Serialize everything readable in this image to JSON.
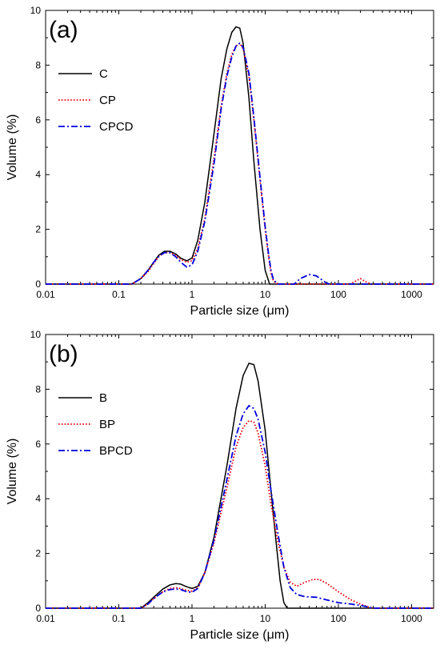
{
  "chart_data": [
    {
      "type": "line",
      "panel_label": "(a)",
      "xlabel": "Particle size (μm)",
      "ylabel": "Volume (%)",
      "x_scale": "log",
      "xlim": [
        0.01,
        2000
      ],
      "ylim": [
        0,
        10
      ],
      "x_ticks": [
        0.01,
        0.1,
        1,
        10,
        100,
        1000
      ],
      "x_tick_labels": [
        "0.01",
        "0.1",
        "1",
        "10",
        "100",
        "1000"
      ],
      "y_ticks": [
        0,
        2,
        4,
        6,
        8,
        10
      ],
      "y_tick_labels": [
        "0",
        "2",
        "4",
        "6",
        "8",
        "10"
      ],
      "legend_position": "top-left",
      "series": [
        {
          "name": "C",
          "color": "#000000",
          "style": "solid",
          "points": [
            [
              0.01,
              0
            ],
            [
              0.15,
              0
            ],
            [
              0.2,
              0.2
            ],
            [
              0.25,
              0.5
            ],
            [
              0.3,
              0.8
            ],
            [
              0.35,
              1.05
            ],
            [
              0.42,
              1.2
            ],
            [
              0.5,
              1.2
            ],
            [
              0.6,
              1.1
            ],
            [
              0.7,
              0.95
            ],
            [
              0.85,
              0.85
            ],
            [
              1.0,
              0.95
            ],
            [
              1.2,
              1.6
            ],
            [
              1.5,
              3.0
            ],
            [
              2.0,
              5.5
            ],
            [
              2.5,
              7.5
            ],
            [
              3.0,
              8.6
            ],
            [
              3.5,
              9.2
            ],
            [
              4.0,
              9.4
            ],
            [
              4.5,
              9.35
            ],
            [
              5.0,
              8.8
            ],
            [
              6.0,
              6.8
            ],
            [
              7.0,
              4.5
            ],
            [
              8.5,
              2.0
            ],
            [
              10,
              0.5
            ],
            [
              11.5,
              0
            ],
            [
              2000,
              0
            ]
          ]
        },
        {
          "name": "CP",
          "color": "#e8000b",
          "style": "dotted",
          "points": [
            [
              0.01,
              0
            ],
            [
              0.15,
              0
            ],
            [
              0.2,
              0.2
            ],
            [
              0.25,
              0.45
            ],
            [
              0.3,
              0.75
            ],
            [
              0.35,
              1.0
            ],
            [
              0.42,
              1.15
            ],
            [
              0.5,
              1.15
            ],
            [
              0.6,
              1.05
            ],
            [
              0.7,
              0.9
            ],
            [
              0.85,
              0.8
            ],
            [
              1.0,
              0.85
            ],
            [
              1.2,
              1.3
            ],
            [
              1.5,
              2.4
            ],
            [
              2.0,
              4.6
            ],
            [
              2.5,
              6.5
            ],
            [
              3.0,
              7.7
            ],
            [
              3.5,
              8.4
            ],
            [
              4.0,
              8.7
            ],
            [
              4.5,
              8.8
            ],
            [
              5.0,
              8.6
            ],
            [
              6.0,
              7.6
            ],
            [
              7.0,
              6.0
            ],
            [
              8.5,
              3.8
            ],
            [
              10,
              2.0
            ],
            [
              11,
              1.1
            ],
            [
              12,
              0.4
            ],
            [
              13,
              0.1
            ],
            [
              15,
              0
            ],
            [
              140,
              0
            ],
            [
              170,
              0.1
            ],
            [
              200,
              0.2
            ],
            [
              230,
              0.1
            ],
            [
              280,
              0
            ],
            [
              2000,
              0
            ]
          ]
        },
        {
          "name": "CPCD",
          "color": "#0000dd",
          "style": "dashdot",
          "points": [
            [
              0.01,
              0
            ],
            [
              0.15,
              0
            ],
            [
              0.2,
              0.2
            ],
            [
              0.25,
              0.5
            ],
            [
              0.3,
              0.8
            ],
            [
              0.35,
              1.0
            ],
            [
              0.42,
              1.15
            ],
            [
              0.5,
              1.15
            ],
            [
              0.6,
              1.0
            ],
            [
              0.7,
              0.8
            ],
            [
              0.85,
              0.62
            ],
            [
              1.0,
              0.7
            ],
            [
              1.2,
              1.2
            ],
            [
              1.5,
              2.3
            ],
            [
              2.0,
              4.4
            ],
            [
              2.5,
              6.4
            ],
            [
              3.0,
              7.6
            ],
            [
              3.5,
              8.3
            ],
            [
              4.0,
              8.7
            ],
            [
              4.5,
              8.8
            ],
            [
              5.0,
              8.65
            ],
            [
              6.0,
              7.7
            ],
            [
              7.0,
              6.1
            ],
            [
              8.5,
              3.9
            ],
            [
              10,
              2.1
            ],
            [
              11,
              1.2
            ],
            [
              12,
              0.5
            ],
            [
              13,
              0.15
            ],
            [
              15,
              0
            ],
            [
              25,
              0
            ],
            [
              30,
              0.2
            ],
            [
              40,
              0.35
            ],
            [
              50,
              0.3
            ],
            [
              60,
              0.15
            ],
            [
              70,
              0.02
            ],
            [
              80,
              0
            ],
            [
              2000,
              0
            ]
          ]
        }
      ]
    },
    {
      "type": "line",
      "panel_label": "(b)",
      "xlabel": "Particle size (μm)",
      "ylabel": "Volume (%)",
      "x_scale": "log",
      "xlim": [
        0.01,
        2000
      ],
      "ylim": [
        0,
        10
      ],
      "x_ticks": [
        0.01,
        0.1,
        1,
        10,
        100,
        1000
      ],
      "x_tick_labels": [
        "0.01",
        "0.1",
        "1",
        "10",
        "100",
        "1000"
      ],
      "y_ticks": [
        0,
        2,
        4,
        6,
        8,
        10
      ],
      "y_tick_labels": [
        "0",
        "2",
        "4",
        "6",
        "8",
        "10"
      ],
      "legend_position": "top-left",
      "series": [
        {
          "name": "B",
          "color": "#000000",
          "style": "solid",
          "points": [
            [
              0.01,
              0
            ],
            [
              0.2,
              0
            ],
            [
              0.25,
              0.2
            ],
            [
              0.3,
              0.4
            ],
            [
              0.4,
              0.7
            ],
            [
              0.5,
              0.85
            ],
            [
              0.6,
              0.9
            ],
            [
              0.7,
              0.88
            ],
            [
              0.85,
              0.78
            ],
            [
              1.0,
              0.72
            ],
            [
              1.2,
              0.8
            ],
            [
              1.5,
              1.3
            ],
            [
              2.0,
              2.6
            ],
            [
              3.0,
              5.2
            ],
            [
              4.0,
              7.3
            ],
            [
              5.0,
              8.5
            ],
            [
              6.0,
              8.95
            ],
            [
              7.0,
              8.9
            ],
            [
              8.0,
              8.3
            ],
            [
              10,
              6.5
            ],
            [
              12,
              4.3
            ],
            [
              14,
              2.5
            ],
            [
              16,
              1.0
            ],
            [
              18,
              0.2
            ],
            [
              20,
              0
            ],
            [
              2000,
              0
            ]
          ]
        },
        {
          "name": "BP",
          "color": "#e8000b",
          "style": "dotted",
          "points": [
            [
              0.01,
              0
            ],
            [
              0.2,
              0
            ],
            [
              0.25,
              0.15
            ],
            [
              0.3,
              0.35
            ],
            [
              0.4,
              0.6
            ],
            [
              0.5,
              0.72
            ],
            [
              0.6,
              0.75
            ],
            [
              0.7,
              0.72
            ],
            [
              0.85,
              0.65
            ],
            [
              1.0,
              0.62
            ],
            [
              1.2,
              0.75
            ],
            [
              1.5,
              1.3
            ],
            [
              2.0,
              2.4
            ],
            [
              3.0,
              4.4
            ],
            [
              4.0,
              5.9
            ],
            [
              5.0,
              6.6
            ],
            [
              6.0,
              6.85
            ],
            [
              7.0,
              6.8
            ],
            [
              8.0,
              6.4
            ],
            [
              10,
              5.2
            ],
            [
              12,
              3.8
            ],
            [
              15,
              2.4
            ],
            [
              18,
              1.5
            ],
            [
              22,
              0.95
            ],
            [
              27,
              0.8
            ],
            [
              35,
              0.95
            ],
            [
              45,
              1.05
            ],
            [
              55,
              1.05
            ],
            [
              70,
              0.9
            ],
            [
              100,
              0.6
            ],
            [
              150,
              0.3
            ],
            [
              200,
              0.15
            ],
            [
              250,
              0.05
            ],
            [
              300,
              0
            ],
            [
              2000,
              0
            ]
          ]
        },
        {
          "name": "BPCD",
          "color": "#0000dd",
          "style": "dashdot",
          "points": [
            [
              0.01,
              0
            ],
            [
              0.2,
              0
            ],
            [
              0.25,
              0.15
            ],
            [
              0.3,
              0.35
            ],
            [
              0.4,
              0.6
            ],
            [
              0.5,
              0.68
            ],
            [
              0.6,
              0.7
            ],
            [
              0.7,
              0.68
            ],
            [
              0.85,
              0.6
            ],
            [
              1.0,
              0.58
            ],
            [
              1.2,
              0.72
            ],
            [
              1.5,
              1.3
            ],
            [
              2.0,
              2.5
            ],
            [
              3.0,
              4.7
            ],
            [
              4.0,
              6.3
            ],
            [
              5.0,
              7.1
            ],
            [
              6.0,
              7.4
            ],
            [
              7.0,
              7.3
            ],
            [
              8.0,
              6.9
            ],
            [
              10,
              5.7
            ],
            [
              12,
              4.3
            ],
            [
              15,
              2.7
            ],
            [
              18,
              1.5
            ],
            [
              22,
              0.75
            ],
            [
              27,
              0.5
            ],
            [
              35,
              0.42
            ],
            [
              50,
              0.4
            ],
            [
              70,
              0.3
            ],
            [
              100,
              0.2
            ],
            [
              150,
              0.15
            ],
            [
              200,
              0.1
            ],
            [
              250,
              0.05
            ],
            [
              300,
              0
            ],
            [
              2000,
              0
            ]
          ]
        }
      ]
    }
  ]
}
